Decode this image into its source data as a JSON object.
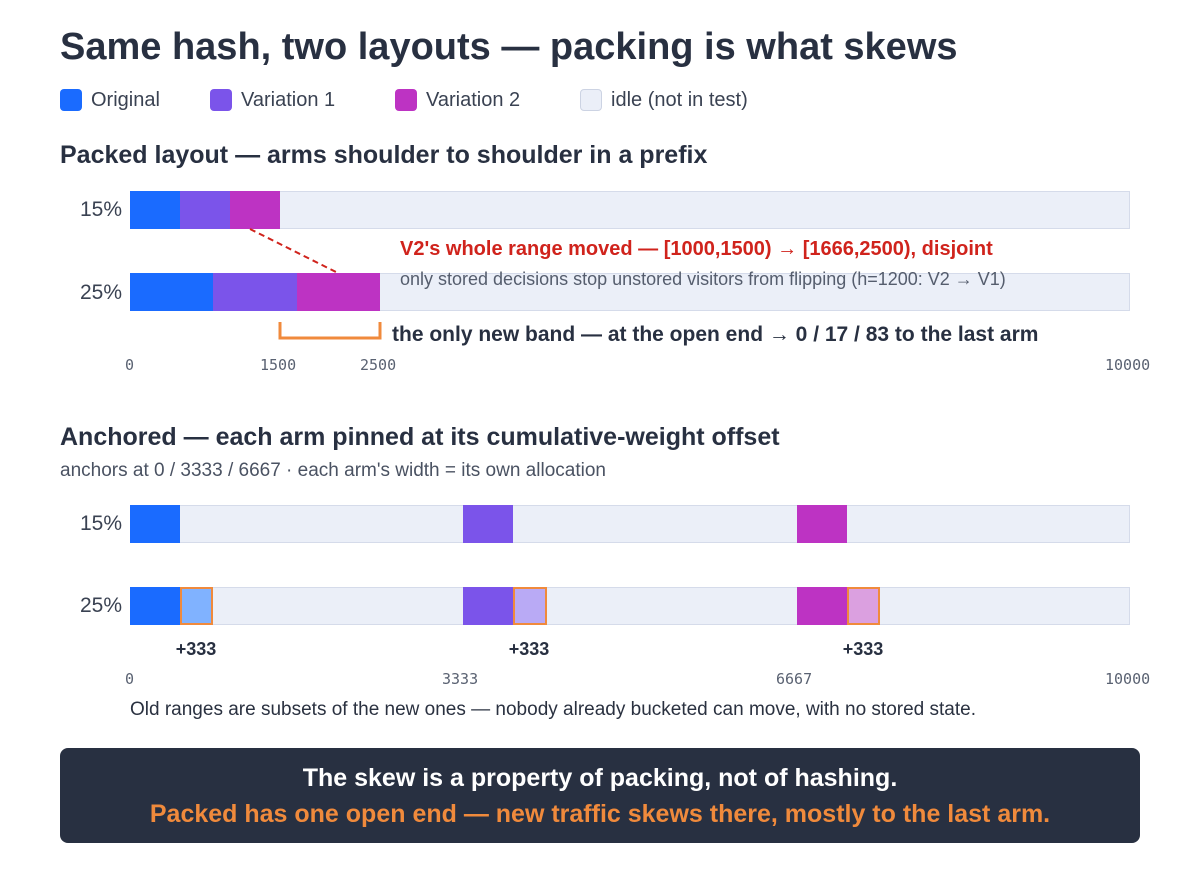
{
  "title": "Same hash, two layouts — packing is what skews",
  "legend": [
    {
      "label": "Original",
      "color": "#1a6bff"
    },
    {
      "label": "Variation 1",
      "color": "#7b54ea"
    },
    {
      "label": "Variation 2",
      "color": "#bd33c3"
    },
    {
      "label": "idle (not in test)",
      "color": "#ebeff8"
    }
  ],
  "packed": {
    "title": "Packed layout — arms shoulder to shoulder in a prefix",
    "rows": [
      {
        "label": "15%",
        "segments": [
          {
            "start": 0,
            "end": 500,
            "arm": "Original"
          },
          {
            "start": 500,
            "end": 1000,
            "arm": "Variation 1"
          },
          {
            "start": 1000,
            "end": 1500,
            "arm": "Variation 2"
          }
        ]
      },
      {
        "label": "25%",
        "segments": [
          {
            "start": 0,
            "end": 833,
            "arm": "Original"
          },
          {
            "start": 833,
            "end": 1666,
            "arm": "Variation 1"
          },
          {
            "start": 1666,
            "end": 2500,
            "arm": "Variation 2"
          }
        ]
      }
    ],
    "annotation_red": "V2's whole range moved — [1000,1500) → [1666,2500), disjoint",
    "annotation_grey": "only stored decisions stop unstored visitors from flipping (h=1200: V2 → V1)",
    "band_label": "the only new band — at the open end → 0 / 17 / 83 to the last arm",
    "ticks": [
      "0",
      "1500",
      "2500",
      "10000"
    ]
  },
  "anchored": {
    "title": "Anchored — each arm pinned at its cumulative-weight offset",
    "subtitle": "anchors at 0 / 3333 / 6667 · each arm's width = its own allocation",
    "rows": [
      {
        "label": "15%",
        "segments": [
          {
            "start": 0,
            "end": 500,
            "arm": "Original"
          },
          {
            "start": 3333,
            "end": 3833,
            "arm": "Variation 1"
          },
          {
            "start": 6667,
            "end": 7167,
            "arm": "Variation 2"
          }
        ]
      },
      {
        "label": "25%",
        "segments": [
          {
            "start": 0,
            "end": 500,
            "arm": "Original"
          },
          {
            "start": 500,
            "end": 833,
            "arm": "Original",
            "added": true,
            "fill": "#80b2ff"
          },
          {
            "start": 3333,
            "end": 3833,
            "arm": "Variation 1"
          },
          {
            "start": 3833,
            "end": 4166,
            "arm": "Variation 1",
            "added": true,
            "fill": "#b9aaf5"
          },
          {
            "start": 6667,
            "end": 7167,
            "arm": "Variation 2"
          },
          {
            "start": 7167,
            "end": 7500,
            "arm": "Variation 2",
            "added": true,
            "fill": "#dba0e0"
          }
        ]
      }
    ],
    "growth_labels": [
      "+333",
      "+333",
      "+333"
    ],
    "ticks": [
      "0",
      "3333",
      "6667",
      "10000"
    ],
    "note": "Old ranges are subsets of the new ones — nobody already bucketed can move, with no stored state."
  },
  "banner": {
    "line1": "The skew is a property of packing, not of hashing.",
    "line2": "Packed has one open end — new traffic skews there, mostly to the last arm."
  }
}
